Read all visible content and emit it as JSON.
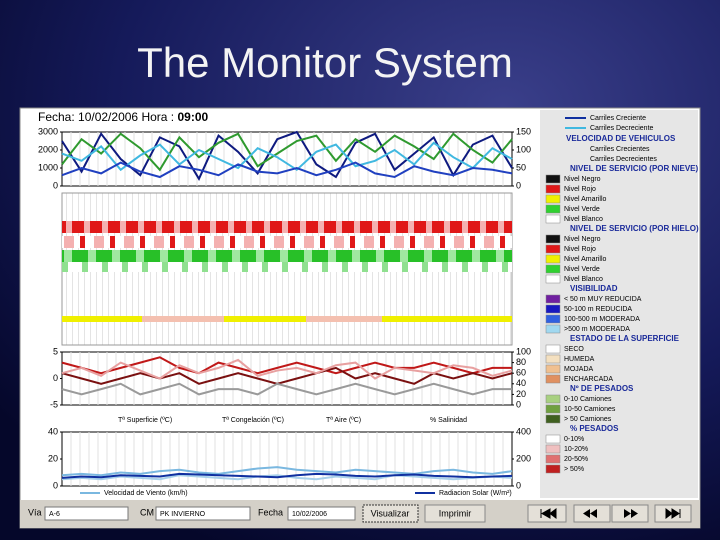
{
  "title": "The Monitor System",
  "header": {
    "date_label": "Fecha:",
    "date": "10/02/2006",
    "time_label": "Hora :",
    "time": "09:00"
  },
  "charts": [
    {
      "type": "line",
      "ylim": [
        0,
        3000
      ],
      "yticks": [
        0,
        1000,
        2000,
        3000
      ],
      "y2lim": [
        0,
        150
      ],
      "y2ticks": [
        0,
        50,
        100,
        150
      ],
      "series": [
        {
          "color": "#0e1a80",
          "values": [
            2500,
            800,
            2900,
            1500,
            600,
            2700,
            2200,
            400,
            2800,
            1900,
            700,
            2600,
            3000,
            1200,
            500,
            2400,
            2900,
            900,
            1800,
            2700,
            600,
            2300,
            2800,
            1000
          ]
        },
        {
          "color": "#2f9a2f",
          "values": [
            1200,
            2600,
            1800,
            2900,
            2100,
            900,
            2700,
            1600,
            2400,
            2900,
            1100,
            1800,
            2500,
            2800,
            1400,
            2600,
            1900,
            2800,
            2200,
            1500,
            2900,
            2000,
            1300,
            2600
          ]
        },
        {
          "color": "#40b8e0",
          "values": [
            1800,
            1400,
            2200,
            900,
            1700,
            2300,
            1200,
            2000,
            1500,
            1000,
            2100,
            1600,
            900,
            1900,
            2300,
            1100,
            1400,
            2000,
            1200,
            2400,
            1600,
            1000,
            2100,
            1500
          ]
        },
        {
          "color": "#2040c0",
          "values": [
            600,
            1000,
            700,
            1300,
            800,
            500,
            1100,
            900,
            600,
            1200,
            800,
            700,
            1000,
            600,
            900,
            1300,
            700,
            500,
            1100,
            800,
            600,
            1000,
            900,
            700
          ]
        }
      ]
    },
    {
      "type": "line",
      "ylim": [
        -5,
        5
      ],
      "yticks": [
        -5,
        0,
        5
      ],
      "y2lim": [
        0,
        100
      ],
      "y2ticks": [
        0,
        20,
        40,
        60,
        80,
        100
      ],
      "labels": [
        "Tª Superficie (ºC)",
        "Tª Congelación (ºC)",
        "Tª Aire (ºC)",
        "% Salinidad"
      ],
      "series": [
        {
          "color": "#c01818",
          "values": [
            3,
            2,
            1,
            2,
            3,
            4,
            2,
            1,
            3,
            2,
            1,
            2,
            3,
            2,
            1,
            2,
            3,
            2,
            2,
            3,
            2,
            1,
            2,
            2
          ]
        },
        {
          "color": "#7a1010",
          "values": [
            1,
            0,
            -1,
            0,
            1,
            0,
            1,
            -1,
            0,
            1,
            0,
            -1,
            0,
            1,
            2,
            0,
            1,
            0,
            -1,
            1,
            0,
            1,
            0,
            1
          ]
        },
        {
          "color": "#e8a0a0",
          "axis": "y2",
          "values": [
            60,
            70,
            55,
            80,
            65,
            50,
            75,
            60,
            70,
            85,
            55,
            65,
            70,
            60,
            75,
            80,
            50,
            70,
            65,
            60,
            75,
            70,
            55,
            65
          ]
        },
        {
          "color": "#9a9a9a",
          "values": [
            -2,
            -3,
            -2,
            -1,
            -3,
            -2,
            -1,
            -3,
            -2,
            -2,
            -3,
            -1,
            -2,
            -3,
            -2,
            -1,
            -2,
            -3,
            -2,
            -1,
            -2,
            -3,
            -2,
            -2
          ]
        }
      ]
    },
    {
      "type": "line",
      "ylim": [
        0,
        40
      ],
      "yticks": [
        0,
        20,
        40
      ],
      "y2lim": [
        0,
        400
      ],
      "y2ticks": [
        0,
        200,
        400
      ],
      "series": [
        {
          "name": "Velocidad de Viento (km/h)",
          "color": "#7ab8e0",
          "values": [
            8,
            9,
            8,
            10,
            9,
            11,
            12,
            10,
            9,
            11,
            13,
            14,
            12,
            11,
            10,
            12,
            11,
            10,
            9,
            11,
            12,
            10,
            9,
            11
          ]
        },
        {
          "color": "#a8d0ea",
          "values": [
            5,
            6,
            5,
            7,
            6,
            5,
            8,
            7,
            6,
            5,
            7,
            8,
            6,
            5,
            7,
            6,
            5,
            8,
            7,
            6,
            5,
            6,
            7,
            6
          ]
        },
        {
          "name": "Radiacion Solar (W/m²)",
          "color": "#1030a0",
          "axis": "y2",
          "values": [
            60,
            70,
            65,
            80,
            75,
            70,
            90,
            85,
            80,
            75,
            70,
            65,
            80,
            90,
            85,
            75,
            70,
            80,
            85,
            75,
            70,
            65,
            70,
            75
          ]
        }
      ]
    }
  ],
  "legend": [
    {
      "items": [
        {
          "label": "Carriles Creciente",
          "color": "#1030a0"
        },
        {
          "label": "Carriles Decreciente",
          "color": "#40b8e0"
        }
      ]
    },
    {
      "heading": "VELOCIDAD DE VEHICULOS",
      "items": [
        {
          "label": "Carriles Crecientes"
        },
        {
          "label": "Carriles Decrecientes"
        }
      ]
    },
    {
      "heading": "NIVEL DE SERVICIO (POR NIEVE)",
      "items": [
        {
          "label": "Nivel Negro",
          "color": "#111111"
        },
        {
          "label": "Nivel Rojo",
          "color": "#e01818"
        },
        {
          "label": "Nivel Amarillo",
          "color": "#f0f000"
        },
        {
          "label": "Nivel Verde",
          "color": "#30d030"
        },
        {
          "label": "Nivel Blanco",
          "color": "#ffffff"
        }
      ]
    },
    {
      "heading": "NIVEL DE SERVICIO (POR HIELO)",
      "items": [
        {
          "label": "Nivel Negro",
          "color": "#111111"
        },
        {
          "label": "Nivel Rojo",
          "color": "#e01818"
        },
        {
          "label": "Nivel Amarillo",
          "color": "#f0f000"
        },
        {
          "label": "Nivel Verde",
          "color": "#30d030"
        },
        {
          "label": "Nivel Blanco",
          "color": "#ffffff"
        }
      ]
    },
    {
      "heading": "VISIBILIDAD",
      "items": [
        {
          "label": "< 50 m MUY REDUCIDA",
          "color": "#7020a0"
        },
        {
          "label": "50-100 m REDUCIDA",
          "color": "#1818c0"
        },
        {
          "label": "100-500 m MODERADA",
          "color": "#3060e0"
        },
        {
          "label": ">500 m MODERADA",
          "color": "#a0d8f0"
        }
      ]
    },
    {
      "heading": "ESTADO DE LA SUPERFICIE",
      "items": [
        {
          "label": "SECO",
          "color": "#ffffff"
        },
        {
          "label": "HUMEDA",
          "color": "#f4e0c0"
        },
        {
          "label": "MOJADA",
          "color": "#f0c090"
        },
        {
          "label": "ENCHARCADA",
          "color": "#e09060"
        }
      ]
    },
    {
      "heading": "Nº DE PESADOS",
      "items": [
        {
          "label": "0-10 Camiones",
          "color": "#a8d080"
        },
        {
          "label": "10-50 Camiones",
          "color": "#70a040"
        },
        {
          "label": "> 50 Camiones",
          "color": "#406020"
        }
      ]
    },
    {
      "heading": "% PESADOS",
      "items": [
        {
          "label": "0-10%",
          "color": "#ffffff"
        },
        {
          "label": "10-20%",
          "color": "#f0c0c0"
        },
        {
          "label": "20-50%",
          "color": "#e07070"
        },
        {
          "label": "> 50%",
          "color": "#c02020"
        }
      ]
    }
  ],
  "toolbar": {
    "via_label": "Vía",
    "via": "A-6",
    "cm_label": "CM",
    "cm": "PK INVIERNO",
    "date_label": "Fecha",
    "date": "10/02/2006",
    "view": "Visualizar",
    "print": "Imprimir"
  }
}
